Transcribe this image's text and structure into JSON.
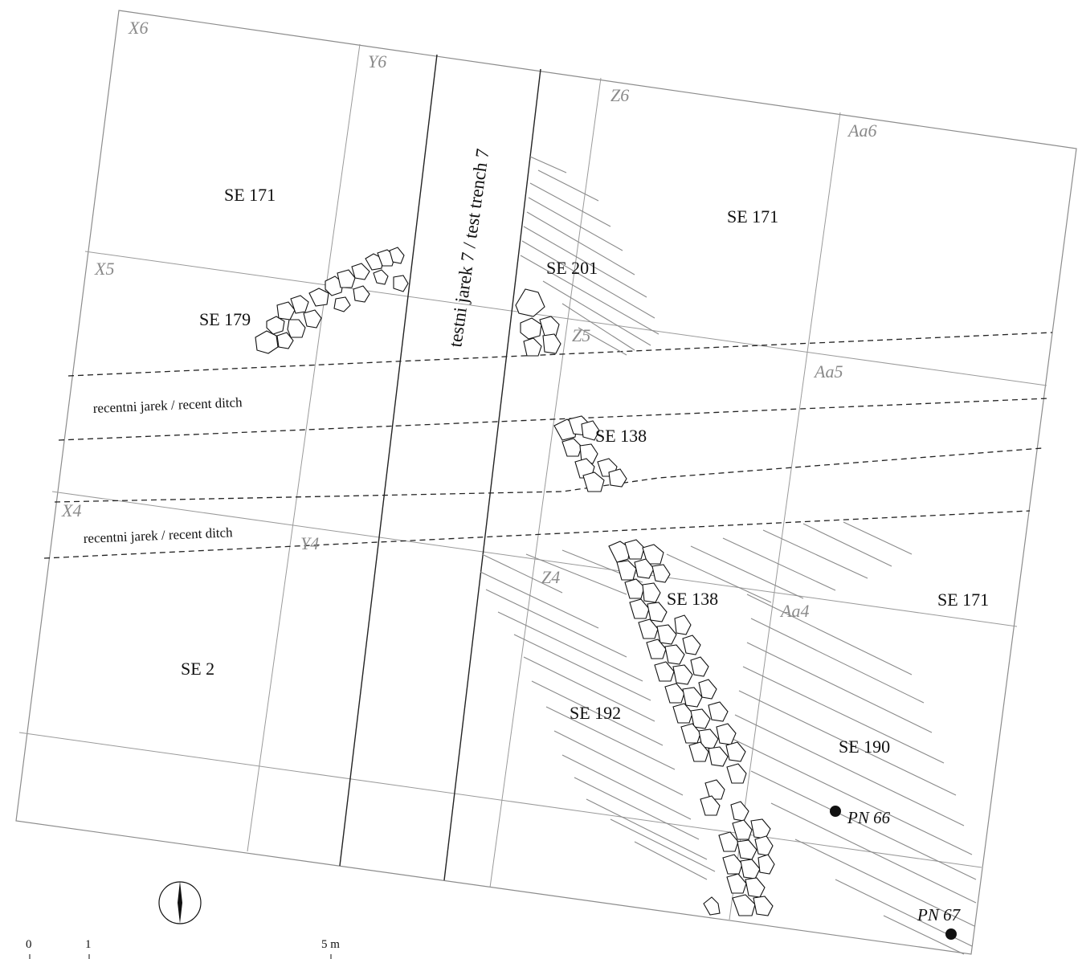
{
  "grid_labels": {
    "x6": "X6",
    "y6": "Y6",
    "z6": "Z6",
    "aa6": "Aa6",
    "x5": "X5",
    "z5": "Z5",
    "aa5": "Aa5",
    "x4": "X4",
    "y4": "Y4",
    "z4": "Z4",
    "aa4": "Aa4"
  },
  "features": {
    "se171_a": "SE 171",
    "se171_b": "SE 171",
    "se171_c": "SE 171",
    "se179": "SE 179",
    "se201": "SE 201",
    "se138_a": "SE 138",
    "se138_b": "SE 138",
    "se2": "SE 2",
    "se192": "SE 192",
    "se190": "SE 190"
  },
  "ditches": {
    "upper": "recentni jarek / recent ditch",
    "lower": "recentni jarek / recent ditch"
  },
  "trench_label": "testni jarek 7 / test trench 7",
  "points": {
    "pn66": "PN 66",
    "pn67": "PN 67"
  },
  "scale_bar": {
    "zero": "0",
    "one": "1",
    "five": "5 m"
  },
  "north_arrow": "north-arrow-icon"
}
